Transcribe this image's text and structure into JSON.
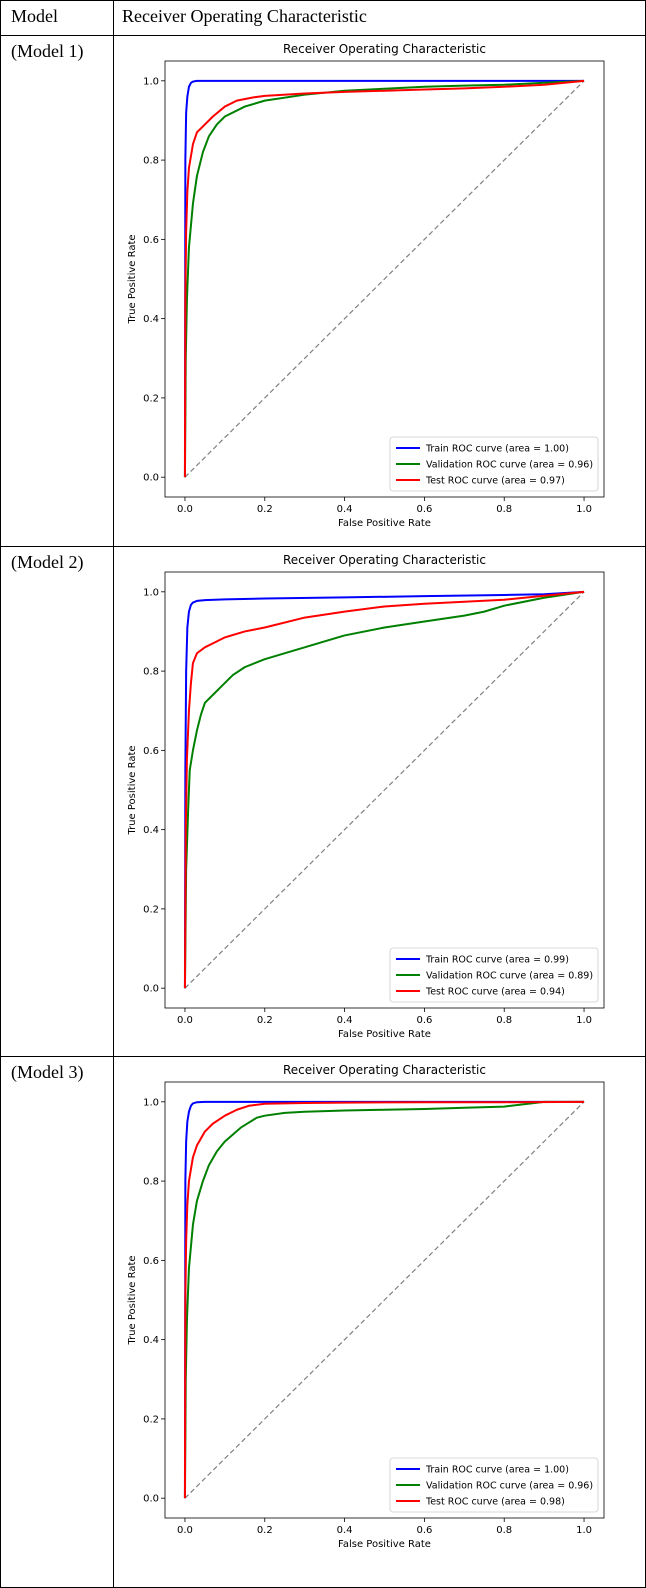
{
  "table": {
    "header_model": "Model",
    "header_roc": "Receiver Operating Characteristic",
    "rows": [
      {
        "model": "(Model 1)"
      },
      {
        "model": "(Model 2)"
      },
      {
        "model": "(Model 3)"
      }
    ]
  },
  "colors": {
    "train": "#0000ff",
    "validation": "#008000",
    "test": "#ff0000",
    "diagonal": "#808080"
  },
  "chart_data": [
    {
      "type": "line",
      "title": "Receiver Operating Characteristic",
      "xlabel": "False Positive Rate",
      "ylabel": "True Positive Rate",
      "xlim": [
        0,
        1
      ],
      "ylim": [
        0,
        1
      ],
      "ticks": [
        "0.0",
        "0.2",
        "0.4",
        "0.6",
        "0.8",
        "1.0"
      ],
      "legend_position": "lower-right",
      "series": [
        {
          "name": "Train ROC curve (area = 1.00)",
          "color": "#0000ff",
          "x": [
            0,
            0.001,
            0.003,
            0.006,
            0.01,
            0.015,
            0.02,
            0.03,
            0.05,
            1.0
          ],
          "y": [
            0,
            0.8,
            0.92,
            0.96,
            0.985,
            0.995,
            0.998,
            1.0,
            1.0,
            1.0
          ]
        },
        {
          "name": "Validation ROC curve (area = 0.96)",
          "color": "#008000",
          "x": [
            0,
            0.002,
            0.005,
            0.01,
            0.02,
            0.03,
            0.045,
            0.06,
            0.08,
            0.1,
            0.15,
            0.2,
            0.3,
            0.4,
            0.5,
            0.6,
            0.7,
            0.8,
            0.9,
            1.0
          ],
          "y": [
            0,
            0.3,
            0.45,
            0.58,
            0.69,
            0.76,
            0.82,
            0.86,
            0.89,
            0.91,
            0.935,
            0.95,
            0.965,
            0.975,
            0.98,
            0.985,
            0.988,
            0.99,
            0.995,
            1.0
          ]
        },
        {
          "name": "Test ROC curve (area = 0.97)",
          "color": "#ff0000",
          "x": [
            0,
            0.001,
            0.003,
            0.006,
            0.01,
            0.02,
            0.03,
            0.05,
            0.07,
            0.1,
            0.13,
            0.17,
            0.2,
            0.3,
            0.4,
            0.5,
            0.6,
            0.7,
            0.8,
            0.9,
            1.0
          ],
          "y": [
            0,
            0.45,
            0.62,
            0.72,
            0.78,
            0.84,
            0.87,
            0.89,
            0.91,
            0.935,
            0.95,
            0.958,
            0.962,
            0.968,
            0.972,
            0.975,
            0.978,
            0.981,
            0.985,
            0.99,
            1.0
          ]
        }
      ]
    },
    {
      "type": "line",
      "title": "Receiver Operating Characteristic",
      "xlabel": "False Positive Rate",
      "ylabel": "True Positive Rate",
      "xlim": [
        0,
        1
      ],
      "ylim": [
        0,
        1
      ],
      "ticks": [
        "0.0",
        "0.2",
        "0.4",
        "0.6",
        "0.8",
        "1.0"
      ],
      "legend_position": "lower-right",
      "series": [
        {
          "name": "Train ROC curve (area = 0.99)",
          "color": "#0000ff",
          "x": [
            0,
            0.001,
            0.003,
            0.006,
            0.01,
            0.015,
            0.02,
            0.03,
            0.05,
            0.1,
            0.2,
            0.4,
            0.6,
            0.8,
            0.9,
            1.0
          ],
          "y": [
            0,
            0.55,
            0.8,
            0.91,
            0.95,
            0.967,
            0.973,
            0.977,
            0.979,
            0.981,
            0.983,
            0.986,
            0.989,
            0.992,
            0.994,
            1.0
          ]
        },
        {
          "name": "Validation ROC curve (area = 0.89)",
          "color": "#008000",
          "x": [
            0,
            0.003,
            0.008,
            0.012,
            0.02,
            0.03,
            0.04,
            0.05,
            0.07,
            0.09,
            0.12,
            0.15,
            0.2,
            0.3,
            0.4,
            0.5,
            0.6,
            0.7,
            0.75,
            0.8,
            0.9,
            1.0
          ],
          "y": [
            0,
            0.3,
            0.45,
            0.55,
            0.6,
            0.65,
            0.69,
            0.72,
            0.74,
            0.76,
            0.79,
            0.81,
            0.83,
            0.86,
            0.89,
            0.91,
            0.925,
            0.94,
            0.95,
            0.965,
            0.985,
            1.0
          ]
        },
        {
          "name": "Test ROC curve (area = 0.94)",
          "color": "#ff0000",
          "x": [
            0,
            0.002,
            0.005,
            0.01,
            0.015,
            0.02,
            0.03,
            0.05,
            0.08,
            0.1,
            0.15,
            0.2,
            0.3,
            0.4,
            0.5,
            0.6,
            0.7,
            0.8,
            0.9,
            1.0
          ],
          "y": [
            0,
            0.4,
            0.58,
            0.7,
            0.77,
            0.82,
            0.845,
            0.86,
            0.875,
            0.885,
            0.9,
            0.91,
            0.935,
            0.95,
            0.963,
            0.97,
            0.975,
            0.98,
            0.99,
            1.0
          ]
        }
      ]
    },
    {
      "type": "line",
      "title": "Receiver Operating Characteristic",
      "xlabel": "False Positive Rate",
      "ylabel": "True Positive Rate",
      "xlim": [
        0,
        1
      ],
      "ylim": [
        0,
        1
      ],
      "ticks": [
        "0.0",
        "0.2",
        "0.4",
        "0.6",
        "0.8",
        "1.0"
      ],
      "legend_position": "lower-right",
      "series": [
        {
          "name": "Train ROC curve (area = 1.00)",
          "color": "#0000ff",
          "x": [
            0,
            0.001,
            0.003,
            0.006,
            0.01,
            0.015,
            0.02,
            0.03,
            0.05,
            1.0
          ],
          "y": [
            0,
            0.8,
            0.9,
            0.95,
            0.975,
            0.99,
            0.996,
            0.999,
            1.0,
            1.0
          ]
        },
        {
          "name": "Validation ROC curve (area = 0.96)",
          "color": "#008000",
          "x": [
            0,
            0.002,
            0.005,
            0.01,
            0.02,
            0.03,
            0.045,
            0.06,
            0.08,
            0.1,
            0.14,
            0.18,
            0.2,
            0.25,
            0.3,
            0.4,
            0.5,
            0.6,
            0.7,
            0.8,
            0.9,
            1.0
          ],
          "y": [
            0,
            0.3,
            0.45,
            0.58,
            0.69,
            0.75,
            0.8,
            0.84,
            0.875,
            0.9,
            0.935,
            0.96,
            0.965,
            0.972,
            0.975,
            0.978,
            0.98,
            0.982,
            0.985,
            0.988,
            1.0,
            1.0
          ]
        },
        {
          "name": "Test ROC curve (area = 0.98)",
          "color": "#ff0000",
          "x": [
            0,
            0.001,
            0.003,
            0.006,
            0.01,
            0.02,
            0.03,
            0.05,
            0.07,
            0.1,
            0.13,
            0.16,
            0.2,
            0.3,
            0.4,
            0.6,
            0.8,
            1.0
          ],
          "y": [
            0,
            0.5,
            0.65,
            0.74,
            0.8,
            0.86,
            0.89,
            0.925,
            0.945,
            0.965,
            0.98,
            0.99,
            0.995,
            0.997,
            0.998,
            0.999,
            0.999,
            1.0
          ]
        }
      ]
    }
  ]
}
